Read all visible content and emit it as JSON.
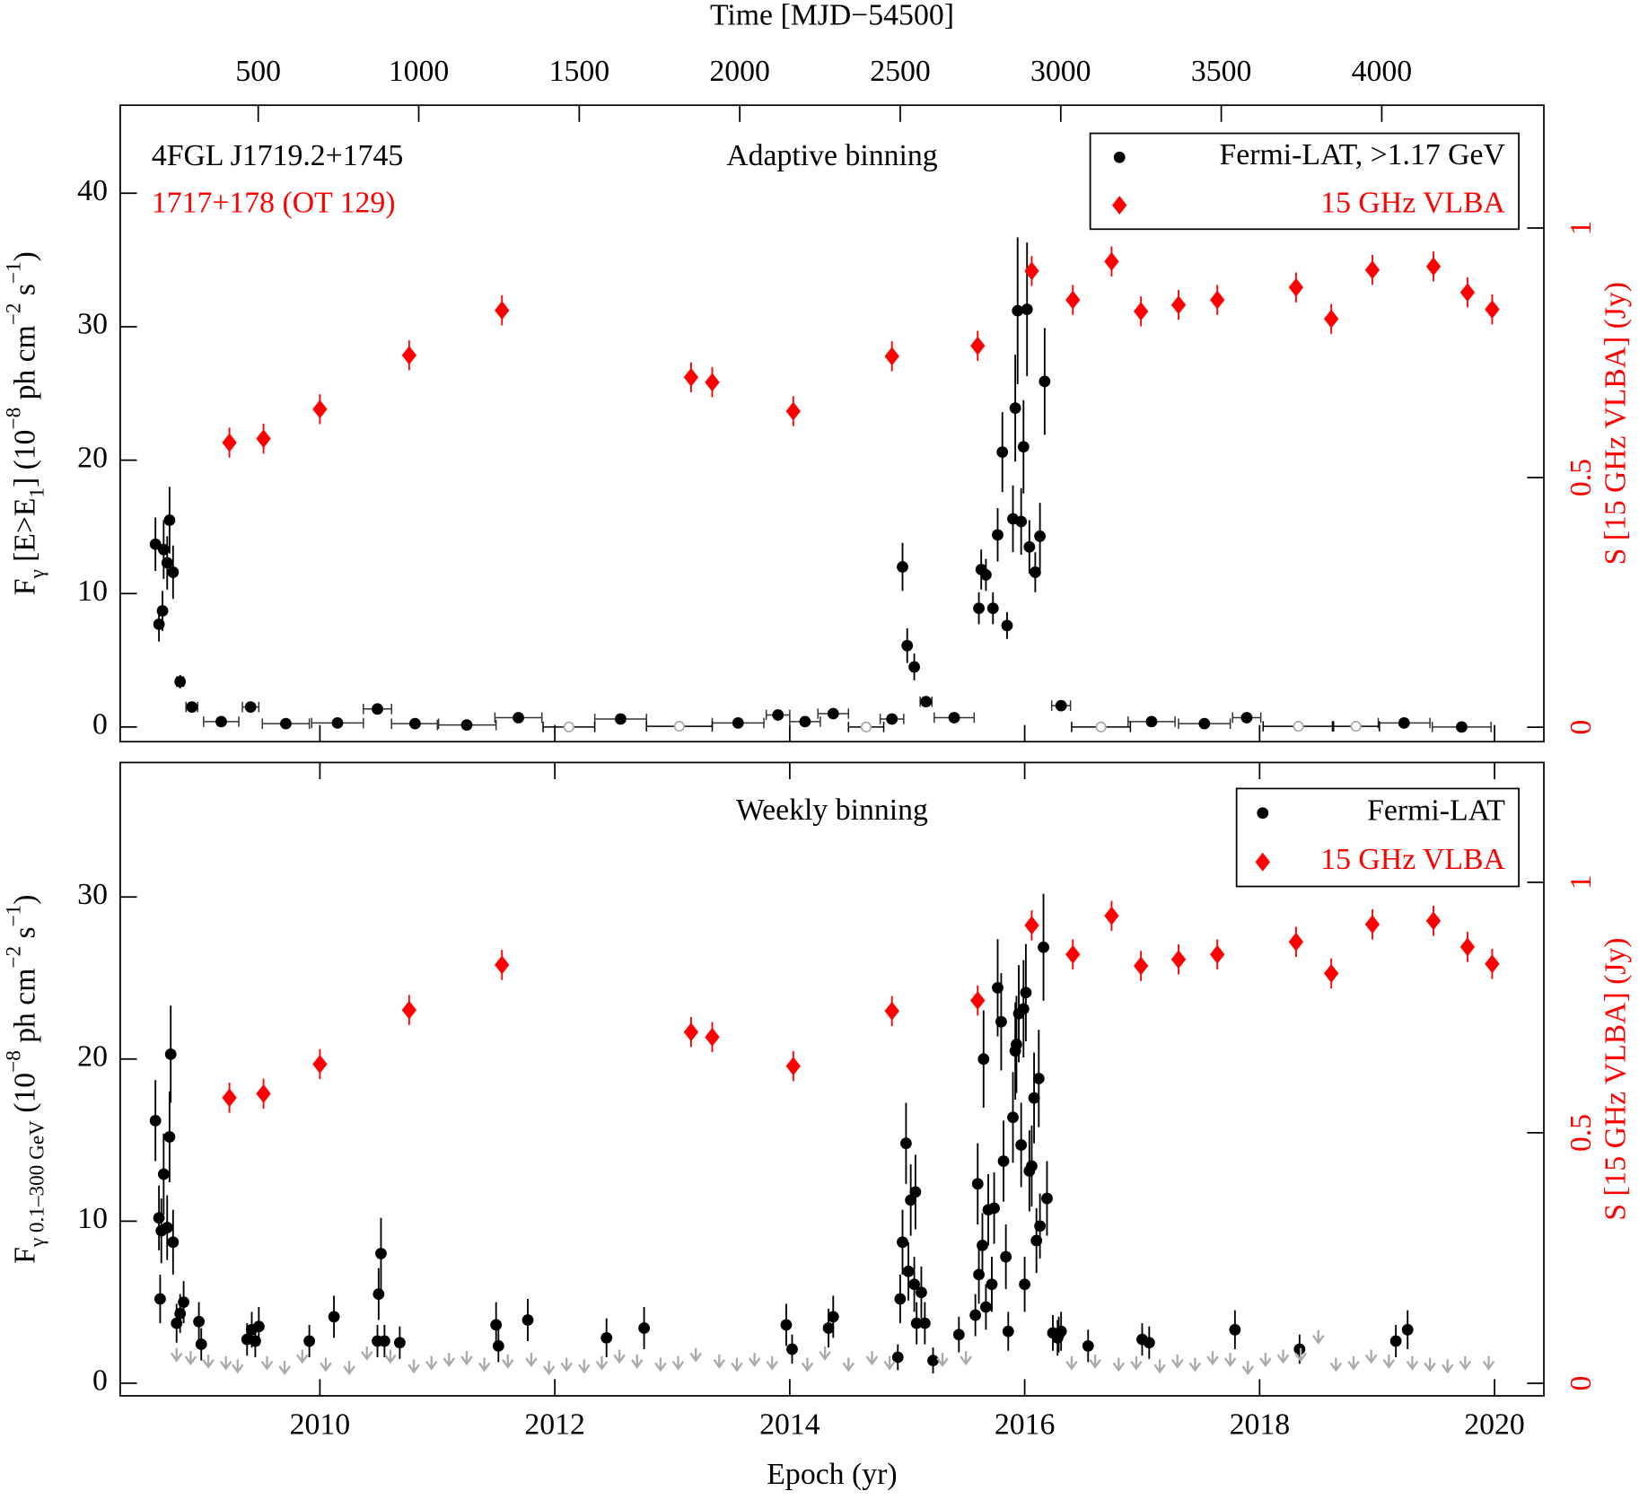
{
  "chart_data": [
    {
      "type": "scatter",
      "x2label": "Time [MJD−54500]",
      "ylabel": [
        {
          "text": "F"
        },
        {
          "text": "γ",
          "shift": "sub"
        },
        {
          "text": " [E>E"
        },
        {
          "text": "1",
          "shift": "sub"
        },
        {
          "text": "] (10"
        },
        {
          "text": "−8",
          "shift": "super"
        },
        {
          "text": " ph cm"
        },
        {
          "text": "−2",
          "shift": "super"
        },
        {
          "text": " s"
        },
        {
          "text": "−1",
          "shift": "super"
        },
        {
          "text": ")"
        }
      ],
      "y2label": "S [15 GHz VLBA] (Jy)",
      "y2color": "#ff0000",
      "annotations": [
        {
          "text": "4FGL J1719.2+1745",
          "color": "#000000"
        },
        {
          "text": "1717+178 (OT 129)",
          "color": "#ff0000"
        },
        {
          "text": "Adaptive binning",
          "color": "#000000"
        }
      ],
      "legend": "upper right",
      "xlim": [
        2008.3,
        2020.42
      ],
      "x2lim": [
        70,
        4505
      ],
      "x2ticks": [
        500,
        1000,
        1500,
        2000,
        2500,
        3000,
        3500,
        4000
      ],
      "ylim": [
        -1.1,
        46.6
      ],
      "yticks": [
        0,
        10,
        20,
        30,
        40
      ],
      "y2lim": [
        -0.029,
        1.246
      ],
      "y2ticks": [
        0,
        0.5,
        1
      ],
      "series": [
        {
          "name": "Fermi-LAT, >1.17 GeV",
          "color": "#000000",
          "marker": "dot",
          "x": [
            2008.6,
            2008.63,
            2008.66,
            2008.67,
            2008.7,
            2008.72,
            2008.75,
            2008.81,
            2008.91,
            2009.16,
            2009.41,
            2009.71,
            2010.15,
            2010.49,
            2010.81,
            2011.25,
            2011.69,
            2012.56,
            2013.56,
            2013.9,
            2014.13,
            2014.37,
            2014.87,
            2014.96,
            2015.0,
            2015.06,
            2015.16,
            2015.4,
            2015.61,
            2015.63,
            2015.67,
            2015.73,
            2015.77,
            2015.81,
            2015.85,
            2015.9,
            2015.92,
            2015.94,
            2015.97,
            2015.99,
            2016.02,
            2016.04,
            2016.09,
            2016.13,
            2016.17,
            2016.31,
            2017.08,
            2017.53,
            2017.89,
            2019.23,
            2019.72
          ],
          "values": [
            13.7,
            7.7,
            8.7,
            13.3,
            12.3,
            15.5,
            11.6,
            3.4,
            1.5,
            0.4,
            1.5,
            0.25,
            0.3,
            1.35,
            0.25,
            0.15,
            0.7,
            0.6,
            0.3,
            0.9,
            0.4,
            1.0,
            0.6,
            12.0,
            6.1,
            4.5,
            1.9,
            0.7,
            8.9,
            11.8,
            11.4,
            8.9,
            14.4,
            20.6,
            7.6,
            15.6,
            23.9,
            31.2,
            15.4,
            21.0,
            31.3,
            13.5,
            11.6,
            14.3,
            25.9,
            1.6,
            0.4,
            0.25,
            0.7,
            0.3,
            0.0
          ],
          "xerr": [
            0.01,
            0.01,
            0.01,
            0.01,
            0.01,
            0.01,
            0.01,
            0.03,
            0.05,
            0.15,
            0.07,
            0.2,
            0.22,
            0.12,
            0.2,
            0.25,
            0.2,
            0.22,
            0.22,
            0.1,
            0.13,
            0.13,
            0.1,
            0.01,
            0.01,
            0.02,
            0.05,
            0.17,
            0.01,
            0.01,
            0.01,
            0.01,
            0.01,
            0.01,
            0.01,
            0.01,
            0.01,
            0.01,
            0.01,
            0.01,
            0.01,
            0.01,
            0.01,
            0.01,
            0.01,
            0.08,
            0.2,
            0.22,
            0.12,
            0.22,
            0.25
          ],
          "yerr": [
            2.0,
            1.3,
            1.5,
            2.2,
            2.0,
            2.5,
            2.0,
            0.5,
            0.3,
            0.15,
            0.3,
            0.1,
            0.1,
            0.3,
            0.1,
            0.1,
            0.2,
            0.15,
            0.1,
            0.2,
            0.15,
            0.2,
            0.2,
            1.8,
            1.3,
            1.0,
            0.3,
            0.2,
            1.2,
            1.5,
            1.2,
            1.2,
            2.0,
            3.0,
            1.0,
            2.5,
            4.0,
            5.5,
            2.5,
            3.5,
            5.0,
            2.0,
            1.5,
            2.5,
            4.0,
            0.3,
            0.1,
            0.1,
            0.2,
            0.1,
            0.1
          ]
        },
        {
          "color": "#aaaaaa",
          "marker": "open-circle",
          "x": [
            2012.12,
            2013.06,
            2014.65,
            2016.65,
            2018.33,
            2018.82
          ],
          "values": [
            0,
            0.05,
            0,
            0,
            0.05,
            0.05
          ],
          "xerr": [
            0.22,
            0.28,
            0.15,
            0.25,
            0.3,
            0.2
          ]
        },
        {
          "name": "15 GHz VLBA",
          "color": "#ff0000",
          "marker": "diamond",
          "axis": "y2",
          "x": [
            2009.23,
            2009.52,
            2010.0,
            2010.76,
            2011.55,
            2013.16,
            2013.34,
            2014.03,
            2014.87,
            2015.6,
            2016.06,
            2016.41,
            2016.74,
            2016.99,
            2017.31,
            2017.64,
            2018.31,
            2018.61,
            2018.96,
            2019.48,
            2019.77,
            2019.98
          ],
          "values": [
            0.57,
            0.578,
            0.637,
            0.745,
            0.835,
            0.701,
            0.691,
            0.633,
            0.743,
            0.764,
            0.914,
            0.856,
            0.933,
            0.833,
            0.846,
            0.856,
            0.881,
            0.818,
            0.916,
            0.923,
            0.871,
            0.837
          ],
          "yerr": [
            0.03,
            0.03,
            0.03,
            0.03,
            0.03,
            0.03,
            0.03,
            0.03,
            0.03,
            0.03,
            0.03,
            0.03,
            0.03,
            0.03,
            0.03,
            0.03,
            0.03,
            0.03,
            0.03,
            0.03,
            0.03,
            0.03
          ]
        }
      ]
    },
    {
      "type": "scatter",
      "xlabel": "Epoch (yr)",
      "ylabel": [
        {
          "text": "F"
        },
        {
          "text": "γ 0.1–300 GeV",
          "shift": "sub"
        },
        {
          "text": " (10"
        },
        {
          "text": "−8",
          "shift": "super"
        },
        {
          "text": " ph cm"
        },
        {
          "text": "−2",
          "shift": "super"
        },
        {
          "text": " s"
        },
        {
          "text": "−1",
          "shift": "super"
        },
        {
          "text": ")"
        }
      ],
      "y2label": "S [15 GHz VLBA] (Jy)",
      "y2color": "#ff0000",
      "annotations": [
        {
          "text": "Weekly binning",
          "color": "#000000"
        }
      ],
      "legend": "upper right",
      "xlim": [
        2008.3,
        2020.42
      ],
      "xticks": [
        2010,
        2012,
        2014,
        2016,
        2018,
        2020
      ],
      "ylim": [
        -0.78,
        38.3
      ],
      "yticks": [
        0,
        10,
        20,
        30
      ],
      "y2lim": [
        -0.025,
        1.239
      ],
      "y2ticks": [
        0,
        0.5,
        1
      ],
      "series": [
        {
          "name": "Fermi-LAT",
          "color": "#000000",
          "marker": "dot",
          "x": [
            2008.6,
            2008.63,
            2008.64,
            2008.65,
            2008.67,
            2008.7,
            2008.72,
            2008.73,
            2008.75,
            2008.78,
            2008.81,
            2008.84,
            2008.97,
            2008.99,
            2009.38,
            2009.42,
            2009.45,
            2009.48,
            2009.91,
            2010.12,
            2010.49,
            2010.5,
            2010.52,
            2010.55,
            2010.68,
            2011.5,
            2011.52,
            2011.77,
            2012.44,
            2012.76,
            2013.97,
            2014.02,
            2014.33,
            2014.37,
            2014.92,
            2014.94,
            2014.96,
            2014.99,
            2015.01,
            2015.03,
            2015.06,
            2015.07,
            2015.08,
            2015.12,
            2015.15,
            2015.22,
            2015.44,
            2015.58,
            2015.6,
            2015.61,
            2015.64,
            2015.65,
            2015.67,
            2015.69,
            2015.72,
            2015.74,
            2015.77,
            2015.8,
            2015.82,
            2015.84,
            2015.86,
            2015.9,
            2015.92,
            2015.93,
            2015.95,
            2015.97,
            2015.99,
            2016.0,
            2016.01,
            2016.04,
            2016.06,
            2016.08,
            2016.1,
            2016.12,
            2016.13,
            2016.16,
            2016.19,
            2016.24,
            2016.28,
            2016.29,
            2016.31,
            2016.54,
            2017.0,
            2017.06,
            2017.79,
            2018.34,
            2019.16,
            2019.26
          ],
          "values": [
            16.2,
            10.2,
            5.2,
            9.4,
            12.9,
            9.6,
            15.2,
            20.3,
            8.7,
            3.7,
            4.3,
            5.0,
            3.8,
            2.4,
            2.7,
            3.3,
            2.6,
            3.5,
            2.6,
            4.1,
            2.6,
            5.5,
            8.0,
            2.6,
            2.5,
            3.6,
            2.3,
            3.9,
            2.8,
            3.4,
            3.6,
            2.1,
            3.4,
            4.1,
            1.6,
            5.2,
            8.7,
            14.8,
            6.9,
            11.3,
            6.1,
            11.8,
            3.7,
            5.6,
            3.7,
            1.4,
            3.0,
            4.2,
            12.3,
            6.7,
            8.5,
            20.0,
            4.7,
            10.7,
            6.1,
            10.8,
            24.4,
            22.3,
            13.7,
            7.8,
            3.2,
            16.4,
            20.5,
            20.9,
            22.8,
            14.7,
            23.1,
            6.1,
            24.1,
            13.1,
            13.4,
            17.6,
            8.8,
            18.8,
            9.7,
            26.9,
            11.4,
            3.1,
            2.8,
            3.0,
            3.2,
            2.3,
            2.7,
            2.5,
            3.3,
            2.1,
            2.6,
            3.3
          ],
          "yerr": [
            2.5,
            2.0,
            1.5,
            2.0,
            2.5,
            2.0,
            2.8,
            3.0,
            2.0,
            1.2,
            1.2,
            1.3,
            1.2,
            1.0,
            1.0,
            1.1,
            1.0,
            1.2,
            1.0,
            1.3,
            1.0,
            1.6,
            2.2,
            1.0,
            1.0,
            1.4,
            1.0,
            1.3,
            1.2,
            1.3,
            1.3,
            0.9,
            1.2,
            1.3,
            0.8,
            1.5,
            2.0,
            2.5,
            1.8,
            2.2,
            1.7,
            2.3,
            1.3,
            1.6,
            1.3,
            0.8,
            1.1,
            1.3,
            2.5,
            1.8,
            2.0,
            3.0,
            1.4,
            2.2,
            1.7,
            2.2,
            3.0,
            3.0,
            2.5,
            2.0,
            1.2,
            2.8,
            3.0,
            3.0,
            3.0,
            2.6,
            3.0,
            1.7,
            3.0,
            2.5,
            2.5,
            2.8,
            2.0,
            3.0,
            2.0,
            3.3,
            2.3,
            1.1,
            1.1,
            1.1,
            1.2,
            1.0,
            1.0,
            1.0,
            1.2,
            0.9,
            1.0,
            1.2
          ]
        },
        {
          "color": "#aaaaaa",
          "marker": "arrow",
          "x": [
            2008.78,
            2008.9,
            2009.05,
            2009.2,
            2009.3,
            2009.55,
            2009.7,
            2009.85,
            2010.05,
            2010.25,
            2010.4,
            2010.6,
            2010.8,
            2010.95,
            2011.1,
            2011.25,
            2011.4,
            2011.6,
            2011.8,
            2011.95,
            2012.1,
            2012.25,
            2012.4,
            2012.55,
            2012.7,
            2012.9,
            2013.05,
            2013.2,
            2013.4,
            2013.55,
            2013.7,
            2013.85,
            2014.15,
            2014.3,
            2014.5,
            2014.7,
            2014.85,
            2015.3,
            2015.5,
            2016.4,
            2016.6,
            2016.8,
            2016.95,
            2017.15,
            2017.3,
            2017.45,
            2017.6,
            2017.75,
            2017.9,
            2018.05,
            2018.2,
            2018.35,
            2018.5,
            2018.65,
            2018.8,
            2018.95,
            2019.1,
            2019.3,
            2019.45,
            2019.6,
            2019.75,
            2019.95
          ],
          "values": [
            1.4,
            1.2,
            1.0,
            0.9,
            0.7,
            0.9,
            0.6,
            1.3,
            0.8,
            0.6,
            1.5,
            1.3,
            0.7,
            0.9,
            1.1,
            1.2,
            0.8,
            1.0,
            1.1,
            0.6,
            0.8,
            0.7,
            0.9,
            1.3,
            1.0,
            0.8,
            0.9,
            1.4,
            1.0,
            0.8,
            1.1,
            0.9,
            0.8,
            1.5,
            0.8,
            1.2,
            0.9,
            1.1,
            1.2,
            0.9,
            1.0,
            0.8,
            0.9,
            0.7,
            1.0,
            0.8,
            1.2,
            1.1,
            0.6,
            1.1,
            1.3,
            1.4,
            2.5,
            0.8,
            0.9,
            1.3,
            1.0,
            0.9,
            0.8,
            0.7,
            0.9,
            0.9
          ]
        },
        {
          "name": "15 GHz VLBA",
          "color": "#ff0000",
          "marker": "diamond",
          "axis": "y2",
          "x": [
            2009.23,
            2009.52,
            2010.0,
            2010.76,
            2011.55,
            2013.16,
            2013.34,
            2014.03,
            2014.87,
            2015.6,
            2016.06,
            2016.41,
            2016.74,
            2016.99,
            2017.31,
            2017.64,
            2018.31,
            2018.61,
            2018.96,
            2019.48,
            2019.77,
            2019.98
          ],
          "values": [
            0.57,
            0.578,
            0.637,
            0.745,
            0.835,
            0.701,
            0.691,
            0.633,
            0.743,
            0.764,
            0.914,
            0.856,
            0.933,
            0.833,
            0.846,
            0.856,
            0.881,
            0.818,
            0.916,
            0.923,
            0.871,
            0.837
          ],
          "yerr": [
            0.03,
            0.03,
            0.03,
            0.03,
            0.03,
            0.03,
            0.03,
            0.03,
            0.03,
            0.03,
            0.03,
            0.03,
            0.03,
            0.03,
            0.03,
            0.03,
            0.03,
            0.03,
            0.03,
            0.03,
            0.03,
            0.03
          ]
        }
      ]
    }
  ]
}
